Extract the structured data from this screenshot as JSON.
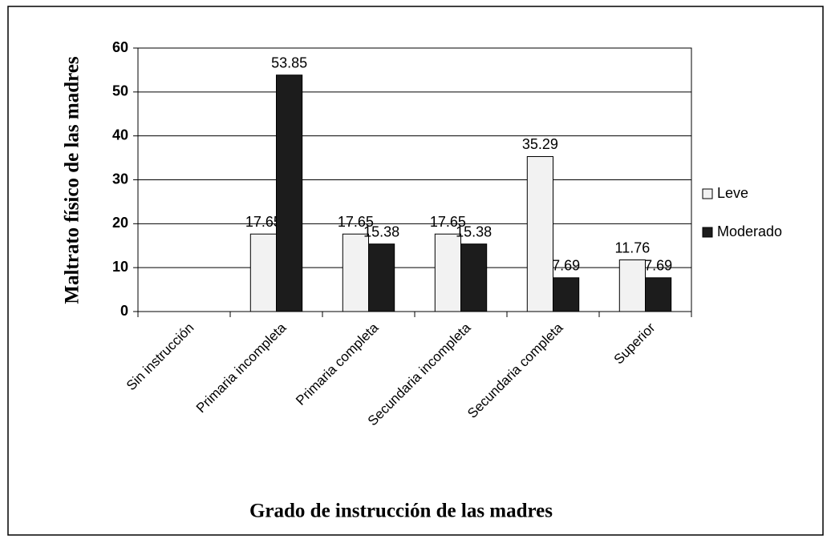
{
  "chart_data": {
    "type": "bar",
    "xlabel": "Grado de instrucción de las madres",
    "ylabel": "Maltrato físico de las madres",
    "categories": [
      "Sin instrucción",
      "Primaria incompleta",
      "Primaria completa",
      "Secundaria incompleta",
      "Secundaria completa",
      "Superior"
    ],
    "series": [
      {
        "name": "Leve",
        "color": "#f2f2f2",
        "values": [
          null,
          17.65,
          17.65,
          17.65,
          35.29,
          11.76
        ]
      },
      {
        "name": "Moderado",
        "color": "#1c1c1c",
        "values": [
          null,
          53.85,
          15.38,
          15.38,
          7.69,
          7.69
        ]
      }
    ],
    "ylim": [
      0,
      60
    ],
    "yticks": [
      0,
      10,
      20,
      30,
      40,
      50,
      60
    ],
    "grid": true,
    "legend": "right"
  }
}
